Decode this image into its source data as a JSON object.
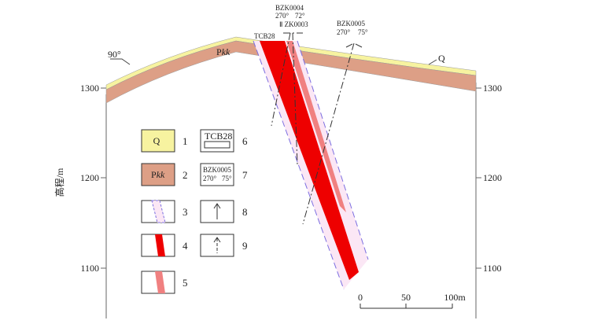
{
  "axis": {
    "title": "高程/m",
    "left_ticks": [
      "1300",
      "1200",
      "1100"
    ],
    "right_ticks": [
      "1300",
      "1200",
      "1100"
    ]
  },
  "labels": {
    "angle": "90°",
    "formation": {
      "main": "P",
      "italic": "kk"
    },
    "trench": "TCB28",
    "quaternary": "Q"
  },
  "drillholes": [
    {
      "name": "BZK0004",
      "azimuth": "270°",
      "dip": "72°"
    },
    {
      "name": "Ⅱ ZK0003"
    },
    {
      "name": "BZK0005",
      "azimuth": "270°",
      "dip": "75°"
    }
  ],
  "legend": [
    {
      "number": "1",
      "label": "Q"
    },
    {
      "number": "2",
      "label_main": "P",
      "label_italic": "kk"
    },
    {
      "number": "3"
    },
    {
      "number": "4"
    },
    {
      "number": "5"
    },
    {
      "number": "6",
      "label": "TCB28"
    },
    {
      "number": "7",
      "name": "BZK0005",
      "azimuth": "270°",
      "dip": "75°"
    },
    {
      "number": "8"
    },
    {
      "number": "9"
    }
  ],
  "scale": [
    "0",
    "50",
    "100m"
  ]
}
